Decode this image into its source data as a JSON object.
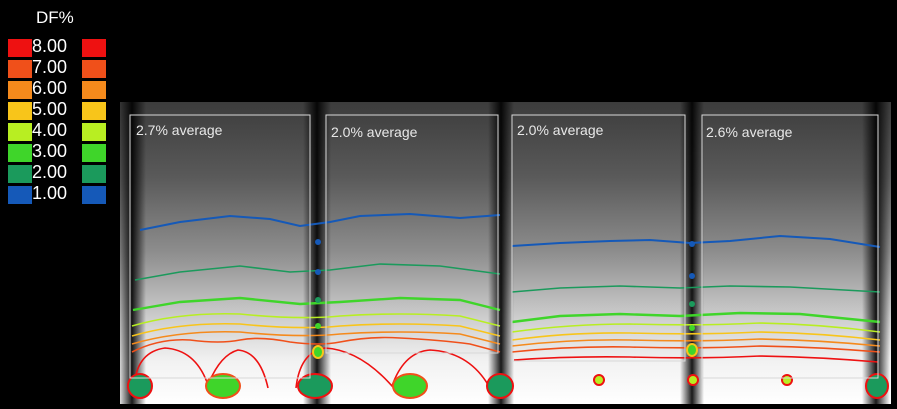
{
  "legend": {
    "title": "DF%",
    "items": [
      {
        "value": "8.00",
        "color": "#ee1111"
      },
      {
        "value": "7.00",
        "color": "#f0501a"
      },
      {
        "value": "6.00",
        "color": "#f58a1c"
      },
      {
        "value": "5.00",
        "color": "#f8c51a"
      },
      {
        "value": "4.00",
        "color": "#b8ee22"
      },
      {
        "value": "3.00",
        "color": "#3fd52a"
      },
      {
        "value": "2.00",
        "color": "#1b9a5c"
      },
      {
        "value": "1.00",
        "color": "#1559b8"
      }
    ]
  },
  "zones": [
    {
      "label": "2.7% average"
    },
    {
      "label": "2.0% average"
    },
    {
      "label": "2.0% average"
    },
    {
      "label": "2.6% average"
    }
  ],
  "colors": {
    "background": "#000000",
    "plot_background": "#ffffff",
    "label_text": "#e8e8e8"
  }
}
